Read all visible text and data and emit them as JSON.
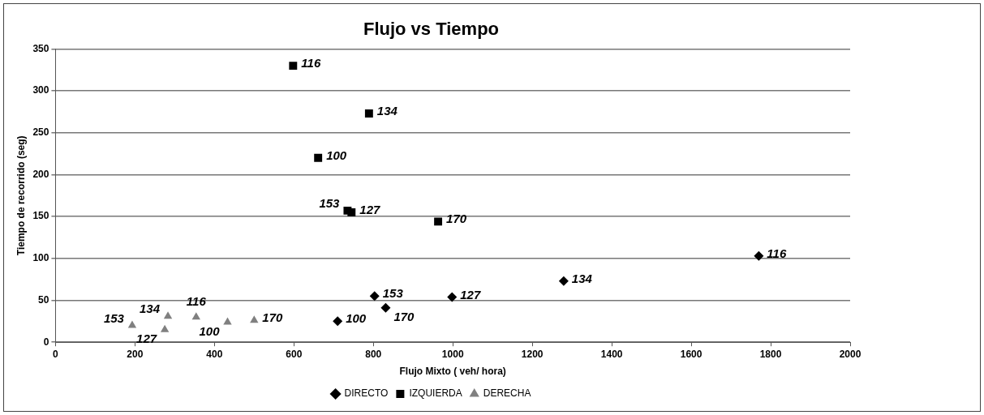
{
  "chart_data": {
    "type": "scatter",
    "title": "Flujo vs Tiempo",
    "xlabel": "Flujo Mixto ( veh/ hora)",
    "ylabel": "Tiempo de recorrido (seg)",
    "xlim": [
      0,
      2000
    ],
    "xticks": [
      0,
      200,
      400,
      600,
      800,
      1000,
      1200,
      1400,
      1600,
      1800,
      2000
    ],
    "ylim": [
      0,
      350
    ],
    "yticks": [
      0,
      50,
      100,
      150,
      200,
      250,
      300,
      350
    ],
    "grid": "y",
    "legend": "bottom",
    "series": [
      {
        "name": "DIRECTO",
        "color": "#000000",
        "marker": "diamond",
        "x": [
          710,
          803,
          831,
          998,
          1279,
          1770
        ],
        "values": [
          25,
          55,
          41,
          54,
          73,
          103
        ]
      },
      {
        "name": "IZQUIERDA",
        "color": "#000000",
        "marker": "square",
        "x": [
          598,
          789,
          661,
          735,
          745,
          963
        ],
        "values": [
          330,
          273,
          220,
          157,
          155,
          144
        ]
      },
      {
        "name": "DERECHA",
        "color": "#808080",
        "marker": "triangle",
        "x": [
          193,
          283,
          275,
          354,
          433,
          500
        ],
        "values": [
          20,
          31,
          15,
          30,
          24,
          26
        ]
      }
    ],
    "annotations": [
      {
        "text": "100",
        "x": 710,
        "y": 25
      },
      {
        "text": "153",
        "x": 803,
        "y": 55
      },
      {
        "text": "170",
        "x": 831,
        "y": 41
      },
      {
        "text": "127",
        "x": 998,
        "y": 54
      },
      {
        "text": "134",
        "x": 1279,
        "y": 73
      },
      {
        "text": "116",
        "x": 1770,
        "y": 103
      },
      {
        "text": "116",
        "x": 598,
        "y": 330
      },
      {
        "text": "134",
        "x": 789,
        "y": 273
      },
      {
        "text": "100",
        "x": 661,
        "y": 220
      },
      {
        "text": "153",
        "x": 735,
        "y": 157
      },
      {
        "text": "127",
        "x": 745,
        "y": 155
      },
      {
        "text": "170",
        "x": 963,
        "y": 144
      },
      {
        "text": "153",
        "x": 193,
        "y": 20
      },
      {
        "text": "134",
        "x": 283,
        "y": 31
      },
      {
        "text": "127",
        "x": 275,
        "y": 15
      },
      {
        "text": "116",
        "x": 354,
        "y": 30
      },
      {
        "text": "100",
        "x": 433,
        "y": 24
      },
      {
        "text": "170",
        "x": 500,
        "y": 26
      }
    ]
  }
}
